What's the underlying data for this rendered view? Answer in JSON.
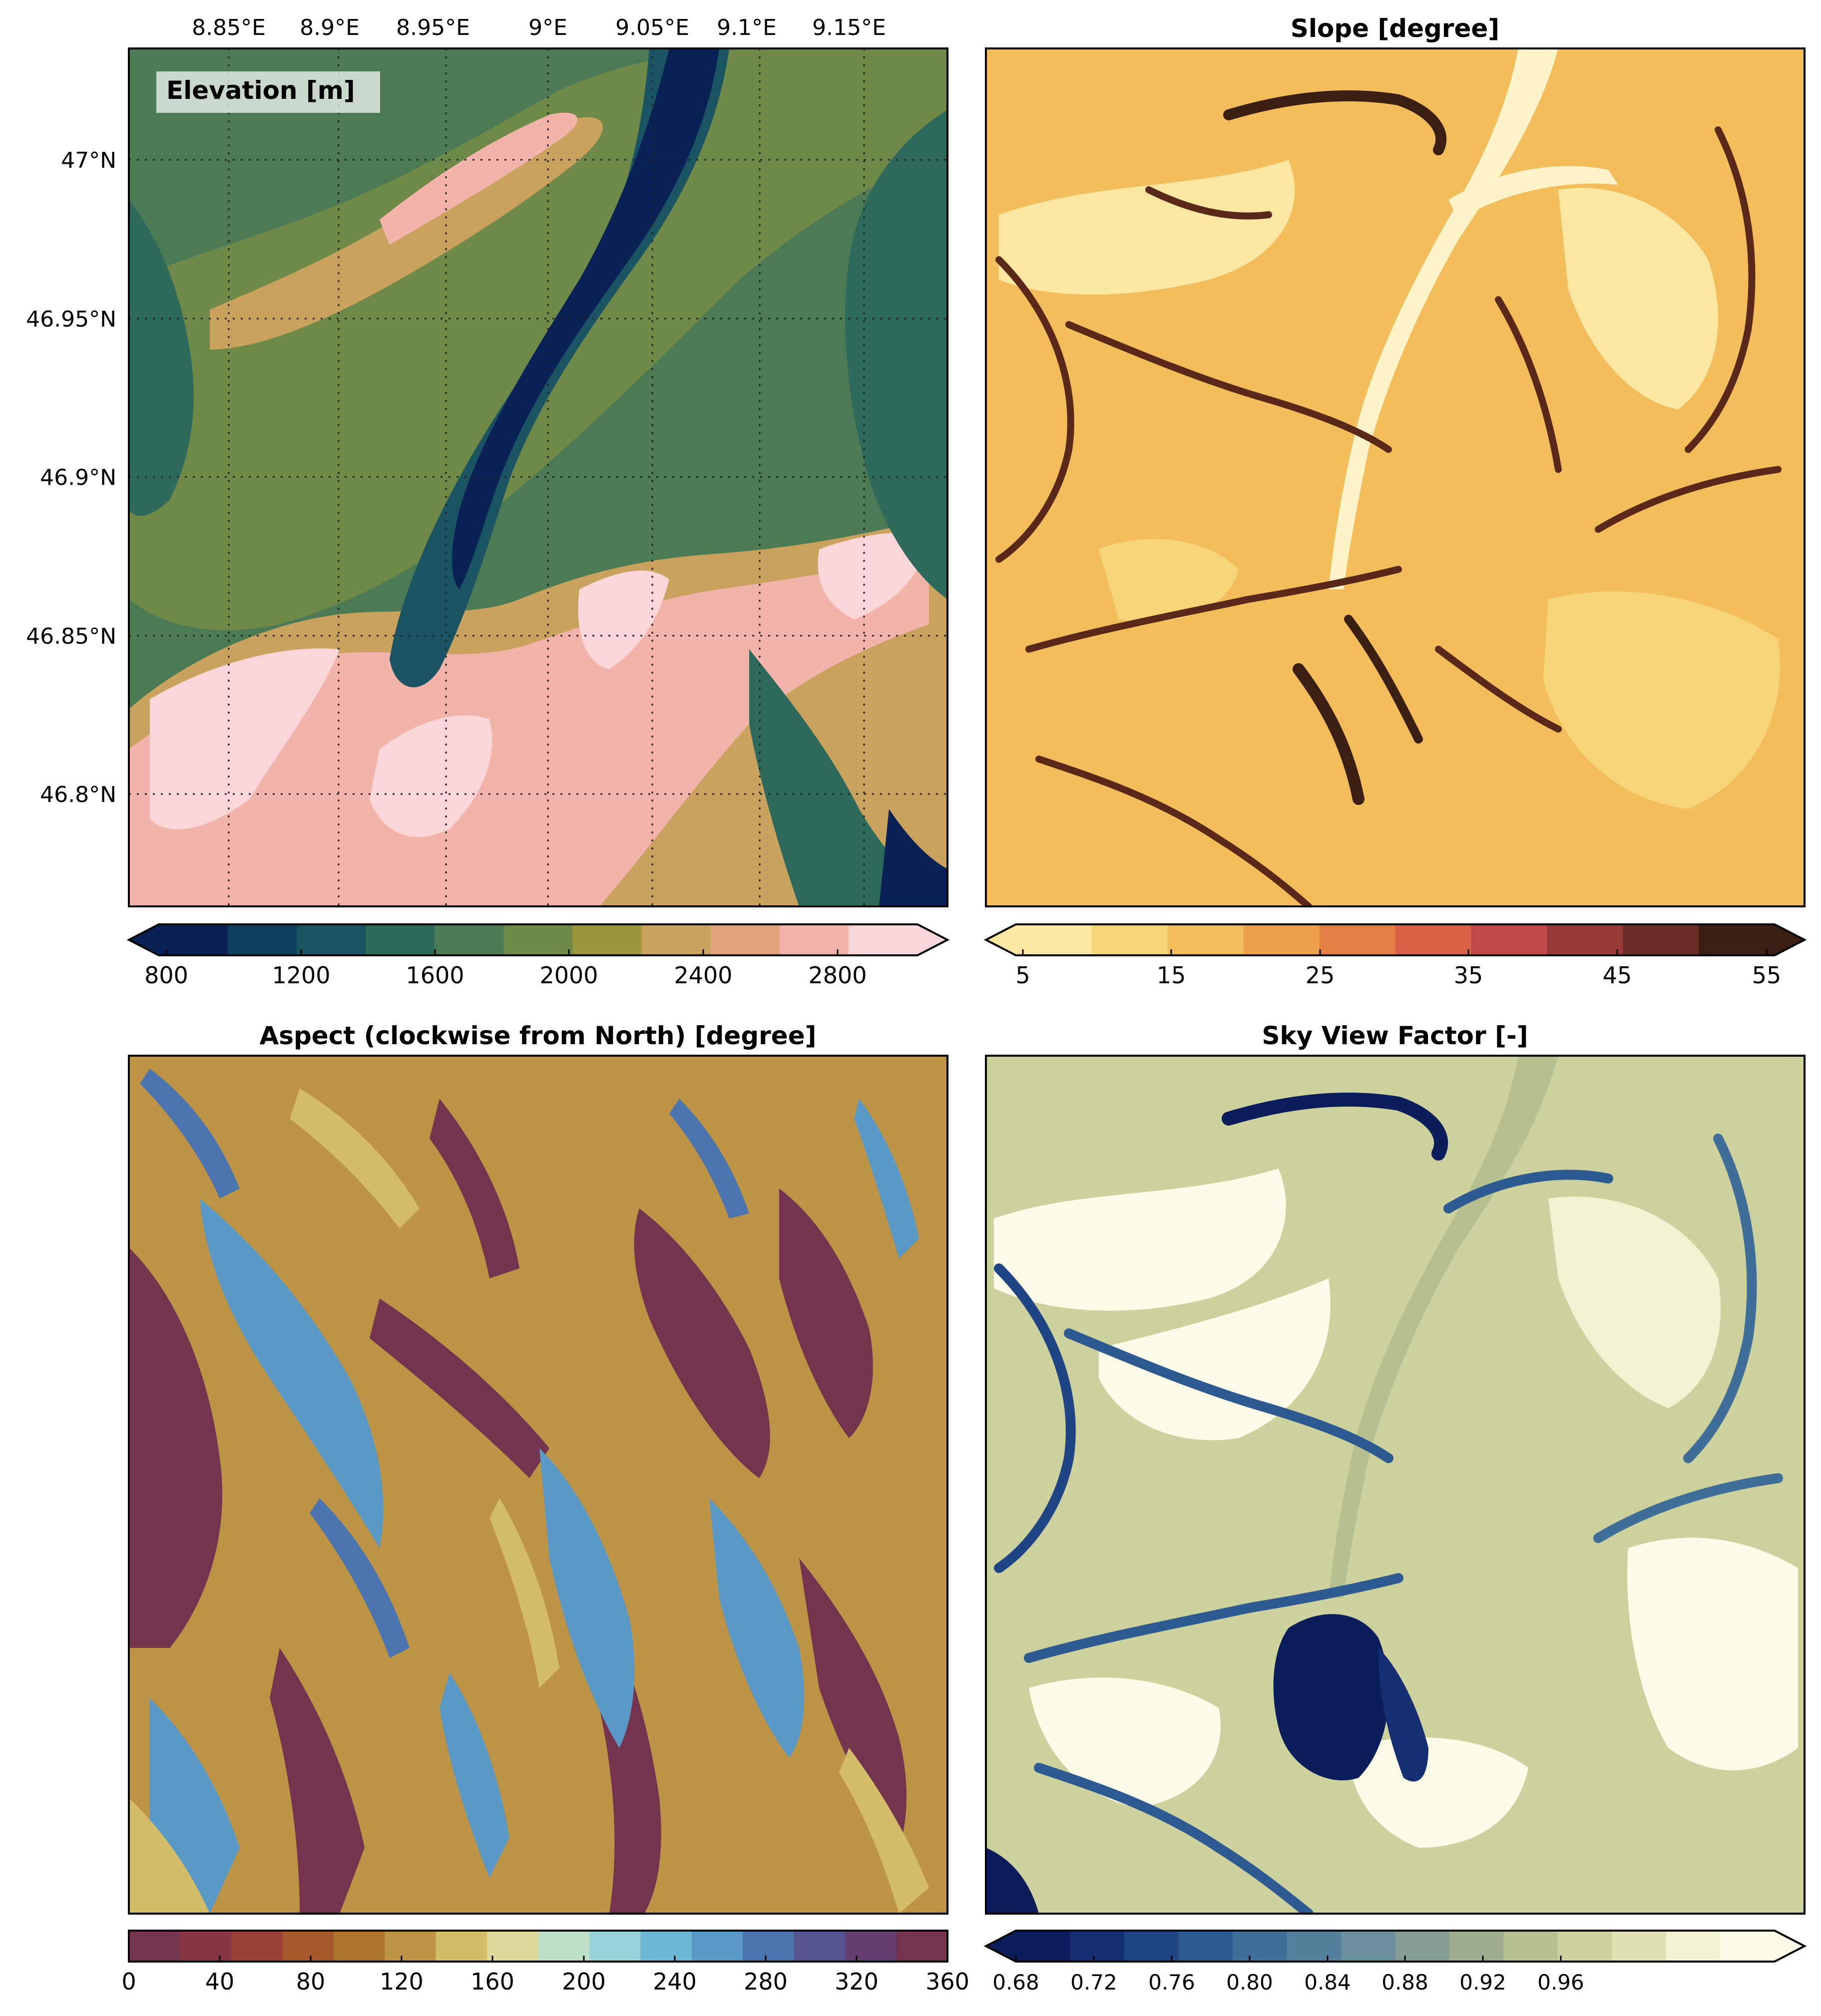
{
  "panels": {
    "elevation": {
      "label": "Elevation [m]",
      "lon_ticks": [
        "8.85°E",
        "8.9°E",
        "8.95°E",
        "9°E",
        "9.05°E",
        "9.1°E",
        "9.15°E"
      ],
      "lat_ticks": [
        "47°N",
        "46.95°N",
        "46.9°N",
        "46.85°N",
        "46.8°N"
      ],
      "colorbar": {
        "ticks": [
          "800",
          "1200",
          "1600",
          "2000",
          "2400",
          "2800"
        ],
        "colors": [
          "#0a2155",
          "#103e5e",
          "#1a5463",
          "#2e6a5c",
          "#4c7a55",
          "#6f8a48",
          "#9c9540",
          "#c9a25e",
          "#e0a37a",
          "#f2b4aa",
          "#fad6d8"
        ],
        "extend": "both"
      }
    },
    "slope": {
      "title": "Slope [degree]",
      "colorbar": {
        "ticks": [
          "5",
          "15",
          "25",
          "35",
          "45",
          "55"
        ],
        "colors": [
          "#fbe7a2",
          "#f6d579",
          "#f2bd5a",
          "#ee9f49",
          "#e47f45",
          "#d86147",
          "#bf4848",
          "#993a38",
          "#6b2e26",
          "#3b1f12"
        ],
        "extend": "both"
      }
    },
    "aspect": {
      "title": "Aspect (clockwise from North) [degree]",
      "colorbar": {
        "ticks": [
          "0",
          "40",
          "80",
          "120",
          "160",
          "200",
          "240",
          "280",
          "320",
          "360"
        ],
        "colors": [
          "#74344e",
          "#883646",
          "#9b4036",
          "#a6582a",
          "#ad7430",
          "#bd9445",
          "#d4bd68",
          "#dcd99b",
          "#bfe0c8",
          "#98d3da",
          "#6db8d6",
          "#5a98c6",
          "#4c74ae",
          "#555490",
          "#663d70",
          "#74344e"
        ],
        "extend": "neither"
      }
    },
    "sky_view": {
      "title": "Sky View Factor [-]",
      "colorbar": {
        "ticks": [
          "0.68",
          "0.72",
          "0.76",
          "0.80",
          "0.84",
          "0.88",
          "0.92",
          "0.96"
        ],
        "colors": [
          "#0b1d5a",
          "#152f72",
          "#204584",
          "#2d5a90",
          "#3f6f98",
          "#54809c",
          "#6b8f9c",
          "#849e96",
          "#9dad8d",
          "#b6bf8f",
          "#ccd19e",
          "#e0e2b5",
          "#f2f1d2",
          "#fdfce9"
        ],
        "extend": "both"
      }
    }
  }
}
